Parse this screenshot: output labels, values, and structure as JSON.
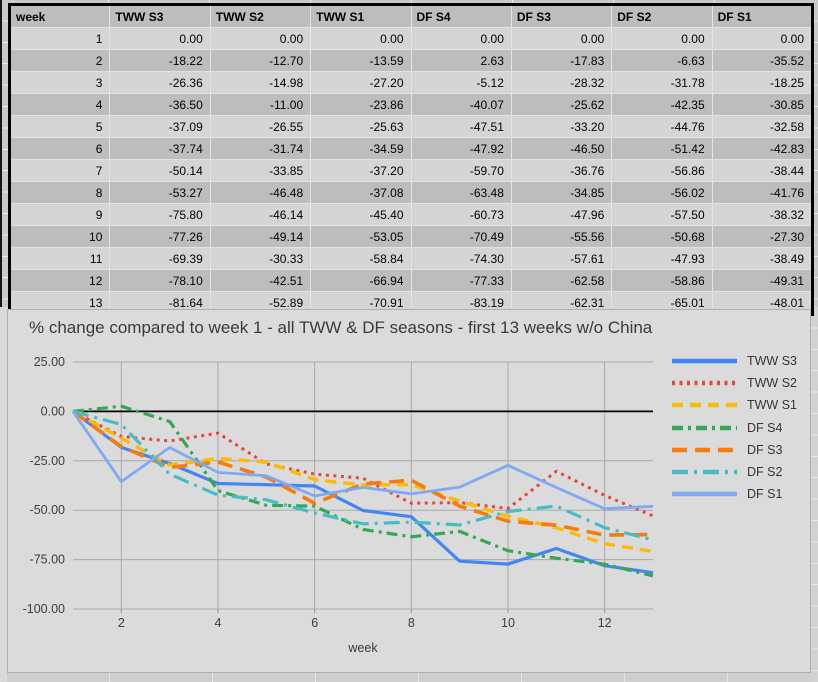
{
  "table": {
    "columns": [
      "week",
      "TWW S3",
      "TWW S2",
      "TWW S1",
      "DF S4",
      "DF S3",
      "DF S2",
      "DF S1"
    ],
    "rows": [
      [
        "1",
        "0.00",
        "0.00",
        "0.00",
        "0.00",
        "0.00",
        "0.00",
        "0.00"
      ],
      [
        "2",
        "-18.22",
        "-12.70",
        "-13.59",
        "2.63",
        "-17.83",
        "-6.63",
        "-35.52"
      ],
      [
        "3",
        "-26.36",
        "-14.98",
        "-27.20",
        "-5.12",
        "-28.32",
        "-31.78",
        "-18.25"
      ],
      [
        "4",
        "-36.50",
        "-11.00",
        "-23.86",
        "-40.07",
        "-25.62",
        "-42.35",
        "-30.85"
      ],
      [
        "5",
        "-37.09",
        "-26.55",
        "-25.63",
        "-47.51",
        "-33.20",
        "-44.76",
        "-32.58"
      ],
      [
        "6",
        "-37.74",
        "-31.74",
        "-34.59",
        "-47.92",
        "-46.50",
        "-51.42",
        "-42.83"
      ],
      [
        "7",
        "-50.14",
        "-33.85",
        "-37.20",
        "-59.70",
        "-36.76",
        "-56.86",
        "-38.44"
      ],
      [
        "8",
        "-53.27",
        "-46.48",
        "-37.08",
        "-63.48",
        "-34.85",
        "-56.02",
        "-41.76"
      ],
      [
        "9",
        "-75.80",
        "-46.14",
        "-45.40",
        "-60.73",
        "-47.96",
        "-57.50",
        "-38.32"
      ],
      [
        "10",
        "-77.26",
        "-49.14",
        "-53.05",
        "-70.49",
        "-55.56",
        "-50.68",
        "-27.30"
      ],
      [
        "11",
        "-69.39",
        "-30.33",
        "-58.84",
        "-74.30",
        "-57.61",
        "-47.93",
        "-38.49"
      ],
      [
        "12",
        "-78.10",
        "-42.51",
        "-66.94",
        "-77.33",
        "-62.58",
        "-58.86",
        "-49.31"
      ],
      [
        "13",
        "-81.64",
        "-52.89",
        "-70.91",
        "-83.19",
        "-62.31",
        "-65.01",
        "-48.01"
      ]
    ]
  },
  "chart_data": {
    "type": "line",
    "title": "% change compared to week 1 - all TWW & DF seasons - first 13 weeks w/o China",
    "xlabel": "week",
    "ylabel": "",
    "x": [
      1,
      2,
      3,
      4,
      5,
      6,
      7,
      8,
      9,
      10,
      11,
      12,
      13
    ],
    "xlim": [
      1,
      13
    ],
    "ylim": [
      -100,
      25
    ],
    "grid": true,
    "legend_position": "right",
    "x_ticks": [
      {
        "v": 2,
        "label": "2"
      },
      {
        "v": 4,
        "label": "4"
      },
      {
        "v": 6,
        "label": "6"
      },
      {
        "v": 8,
        "label": "8"
      },
      {
        "v": 10,
        "label": "10"
      },
      {
        "v": 12,
        "label": "12"
      }
    ],
    "y_ticks": [
      {
        "v": 25,
        "label": "25.00"
      },
      {
        "v": 0,
        "label": "0.00"
      },
      {
        "v": -25,
        "label": "-25.00"
      },
      {
        "v": -50,
        "label": "-50.00"
      },
      {
        "v": -75,
        "label": "-75.00"
      },
      {
        "v": -100,
        "label": "-100.00"
      }
    ],
    "series": [
      {
        "name": "TWW S3",
        "color": "#4285F4",
        "style": "solid",
        "width": 3.2,
        "values": [
          0.0,
          -18.22,
          -26.36,
          -36.5,
          -37.09,
          -37.74,
          -50.14,
          -53.27,
          -75.8,
          -77.26,
          -69.39,
          -78.1,
          -81.64
        ]
      },
      {
        "name": "TWW S2",
        "color": "#E8463C",
        "style": "dotted",
        "width": 3.0,
        "values": [
          0.0,
          -12.7,
          -14.98,
          -11.0,
          -26.55,
          -31.74,
          -33.85,
          -46.48,
          -46.14,
          -49.14,
          -30.33,
          -42.51,
          -52.89
        ]
      },
      {
        "name": "TWW S1",
        "color": "#FBBC04",
        "style": "dashed",
        "width": 3.4,
        "values": [
          0.0,
          -13.59,
          -27.2,
          -23.86,
          -25.63,
          -34.59,
          -37.2,
          -37.08,
          -45.4,
          -53.05,
          -58.84,
          -66.94,
          -70.91
        ]
      },
      {
        "name": "DF S4",
        "color": "#34A853",
        "style": "dashdot",
        "width": 3.2,
        "values": [
          0.0,
          2.63,
          -5.12,
          -40.07,
          -47.51,
          -47.92,
          -59.7,
          -63.48,
          -60.73,
          -70.49,
          -74.3,
          -77.33,
          -83.19
        ]
      },
      {
        "name": "DF S3",
        "color": "#F77B0E",
        "style": "longdash",
        "width": 3.6,
        "values": [
          0.0,
          -17.83,
          -28.32,
          -25.62,
          -33.2,
          -46.5,
          -36.76,
          -34.85,
          -47.96,
          -55.56,
          -57.61,
          -62.58,
          -62.31
        ]
      },
      {
        "name": "DF S2",
        "color": "#46BDC6",
        "style": "dashdotlong",
        "width": 3.2,
        "values": [
          0.0,
          -6.63,
          -31.78,
          -42.35,
          -44.76,
          -51.42,
          -56.86,
          -56.02,
          -57.5,
          -50.68,
          -47.93,
          -58.86,
          -65.01
        ]
      },
      {
        "name": "DF S1",
        "color": "#7FA9F2",
        "style": "solid",
        "width": 2.8,
        "values": [
          0.0,
          -35.52,
          -18.25,
          -30.85,
          -32.58,
          -42.83,
          -38.44,
          -41.76,
          -38.32,
          -27.3,
          -38.49,
          -49.31,
          -48.01
        ]
      }
    ]
  }
}
